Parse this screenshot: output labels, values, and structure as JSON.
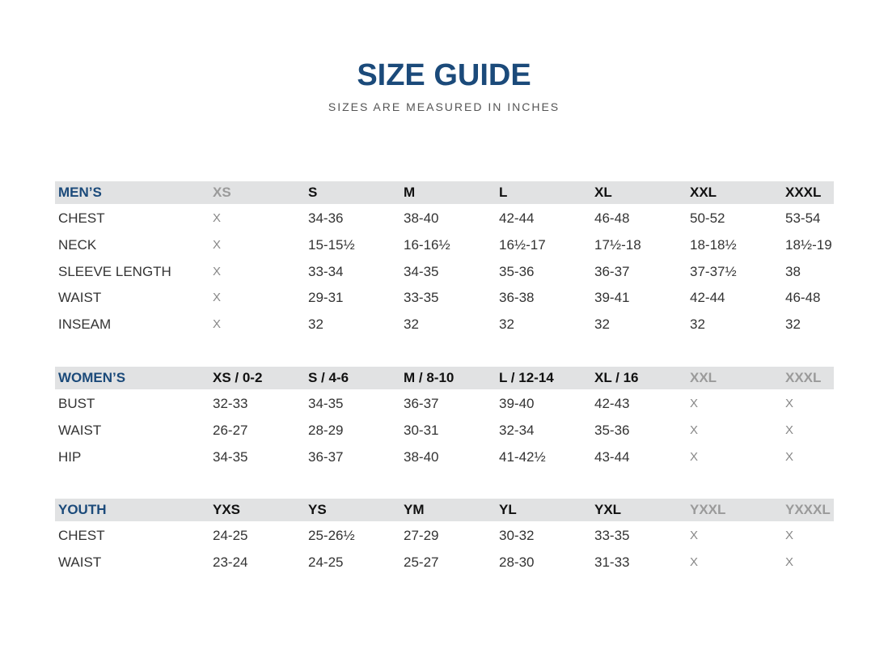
{
  "header": {
    "title": "SIZE GUIDE",
    "subtitle": "SIZES ARE MEASURED IN INCHES"
  },
  "tables": [
    {
      "columns": [
        "MEN’S",
        "XS",
        "S",
        "M",
        "L",
        "XL",
        "XXL",
        "XXXL"
      ],
      "rows": [
        [
          "CHEST",
          "X",
          "34-36",
          "38-40",
          "42-44",
          "46-48",
          "50-52",
          "53-54"
        ],
        [
          "NECK",
          "X",
          "15-15½",
          "16-16½",
          "16½-17",
          "17½-18",
          "18-18½",
          "18½-19"
        ],
        [
          "SLEEVE LENGTH",
          "X",
          "33-34",
          "34-35",
          "35-36",
          "36-37",
          "37-37½",
          "38"
        ],
        [
          "WAIST",
          "X",
          "29-31",
          "33-35",
          "36-38",
          "39-41",
          "42-44",
          "46-48"
        ],
        [
          "INSEAM",
          "X",
          "32",
          "32",
          "32",
          "32",
          "32",
          "32"
        ]
      ]
    },
    {
      "columns": [
        "WOMEN’S",
        "XS / 0-2",
        "S / 4-6",
        "M / 8-10",
        "L / 12-14",
        "XL / 16",
        "XXL",
        "XXXL"
      ],
      "rows": [
        [
          "BUST",
          "32-33",
          "34-35",
          "36-37",
          "39-40",
          "42-43",
          "X",
          "X"
        ],
        [
          "WAIST",
          "26-27",
          "28-29",
          "30-31",
          "32-34",
          "35-36",
          "X",
          "X"
        ],
        [
          "HIP",
          "34-35",
          "36-37",
          "38-40",
          "41-42½",
          "43-44",
          "X",
          "X"
        ]
      ]
    },
    {
      "columns": [
        "YOUTH",
        "YXS",
        "YS",
        "YM",
        "YL",
        "YXL",
        "YXXL",
        "YXXXL"
      ],
      "rows": [
        [
          "CHEST",
          "24-25",
          "25-26½",
          "27-29",
          "30-32",
          "33-35",
          "X",
          "X"
        ],
        [
          "WAIST",
          "23-24",
          "24-25",
          "25-27",
          "28-30",
          "31-33",
          "X",
          "X"
        ]
      ]
    }
  ]
}
